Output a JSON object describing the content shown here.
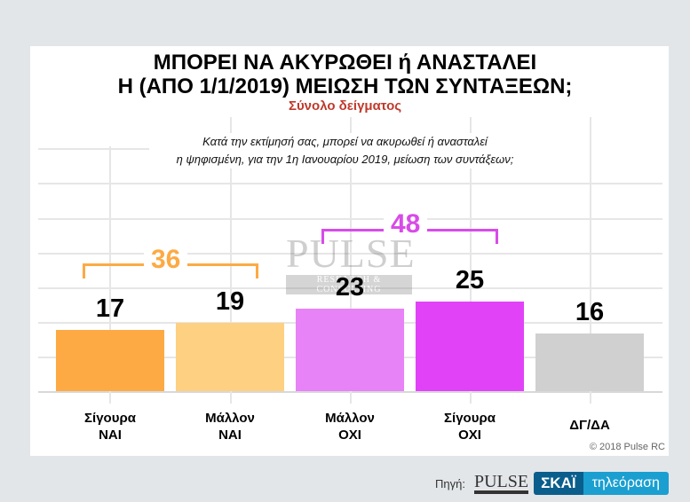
{
  "header": {
    "title_line1": "ΜΠΟΡΕΙ ΝΑ ΑΚΥΡΩΘΕΙ ή ΑΝΑΣΤΑΛΕΙ",
    "title_line2": "Η (ΑΠΟ 1/1/2019) ΜΕΙΩΣΗ ΤΩΝ ΣΥΝΤΑΞΕΩΝ;",
    "subtitle": "Σύνολο δείγματος",
    "question_line1": "Κατά την εκτίμησή σας, μπορεί να ακυρωθεί ή ανασταλεί",
    "question_line2": "η ψηφισμένη, για την 1η Ιανουαρίου 2019, μείωση των συντάξεων;"
  },
  "chart_data": {
    "type": "bar",
    "title": "ΜΠΟΡΕΙ ΝΑ ΑΚΥΡΩΘΕΙ ή ΑΝΑΣΤΑΛΕΙ Η (ΑΠΟ 1/1/2019) ΜΕΙΩΣΗ ΤΩΝ ΣΥΝΤΑΞΕΩΝ;",
    "subtitle": "Σύνολο δείγματος",
    "categories": [
      "Σίγουρα ΝΑΙ",
      "Μάλλον ΝΑΙ",
      "Μάλλον ΟΧΙ",
      "Σίγουρα ΟΧΙ",
      "ΔΓ/ΔΑ"
    ],
    "category_lines": [
      [
        "Σίγουρα",
        "ΝΑΙ"
      ],
      [
        "Μάλλον",
        "ΝΑΙ"
      ],
      [
        "Μάλλον",
        "ΟΧΙ"
      ],
      [
        "Σίγουρα",
        "ΟΧΙ"
      ],
      [
        "ΔΓ/ΔΑ",
        ""
      ]
    ],
    "values": [
      17,
      19,
      23,
      25,
      16
    ],
    "value_labels": [
      "17",
      "19",
      "23",
      "25",
      "16"
    ],
    "colors": [
      "#fdaa44",
      "#fed082",
      "#e882f7",
      "#e142f8",
      "#d0d0d0"
    ],
    "groups": [
      {
        "label": "36",
        "members": [
          0,
          1
        ],
        "color": "#fdaa44"
      },
      {
        "label": "48",
        "members": [
          2,
          3
        ],
        "color": "#d84be8"
      }
    ],
    "xlabel": "",
    "ylabel": "",
    "ylim": [
      0,
      60
    ],
    "grid": true,
    "legend": "none"
  },
  "footer": {
    "copyright": "© 2018 Pulse RC",
    "source_label": "Πηγή:",
    "pulse_logo": "PULSE",
    "skai_logo": "ΣΚΑΪ",
    "skai_tv": "τηλεόραση"
  },
  "watermark": {
    "text": "PULSE",
    "sub": "RESEARCH & CONSULTING"
  }
}
